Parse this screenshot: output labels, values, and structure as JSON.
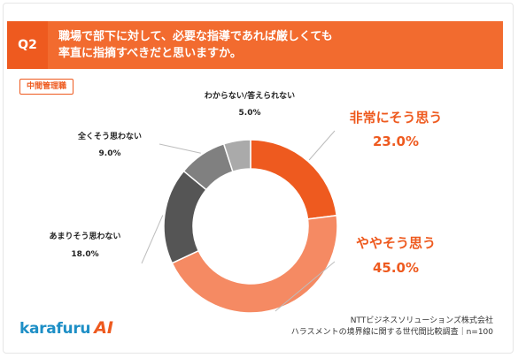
{
  "question": {
    "badge": "Q2",
    "line1": "職場で部下に対して、必要な指導であれば厳しくても",
    "line2": "率直に指摘すべきだと思いますか。"
  },
  "segment_tag": "中間管理職",
  "chart_data": {
    "type": "pie",
    "donut": true,
    "slices": [
      {
        "label": "非常にそう思う",
        "value": 23.0,
        "value_label": "23.0%",
        "color": "#ee5a1f"
      },
      {
        "label": "ややそう思う",
        "value": 45.0,
        "value_label": "45.0%",
        "color": "#f58a63"
      },
      {
        "label": "あまりそう思わない",
        "value": 18.0,
        "value_label": "18.0%",
        "color": "#555555"
      },
      {
        "label": "全くそう思わない",
        "value": 9.0,
        "value_label": "9.0%",
        "color": "#808080"
      },
      {
        "label": "わからない/答えられない",
        "value": 5.0,
        "value_label": "5.0%",
        "color": "#aaaaaa"
      }
    ]
  },
  "footer": {
    "company": "NTTビジネスソリューションズ株式会社",
    "survey": "ハラスメントの境界線に関する世代間比較調査｜n=100"
  },
  "logo": {
    "text": "karafuru",
    "ai": "AI"
  }
}
